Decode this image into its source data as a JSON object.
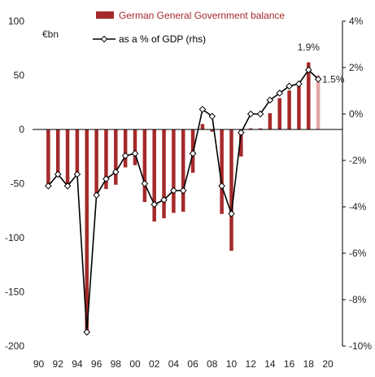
{
  "chart_data": {
    "type": "bar",
    "title": "",
    "y_left_unit": "€bn",
    "ylim_left": [
      -200,
      100
    ],
    "ylim_right": [
      -10,
      4
    ],
    "y_left_ticks": [
      100,
      50,
      0,
      -50,
      -100,
      -150,
      -200
    ],
    "y_left_tick_labels": [
      "100",
      "50",
      "0",
      "-50",
      "-100",
      "-150",
      "-200"
    ],
    "y_right_ticks": [
      4,
      2,
      0,
      -2,
      -4,
      -6,
      -8,
      -10
    ],
    "y_right_tick_labels": [
      "4%",
      "2%",
      "0%",
      "-2%",
      "-4%",
      "-6%",
      "-8%",
      "-10%"
    ],
    "x_tick_labels": [
      "90",
      "92",
      "94",
      "96",
      "98",
      "00",
      "02",
      "04",
      "06",
      "08",
      "10",
      "12",
      "14",
      "16",
      "18",
      "20"
    ],
    "legend_position": "top",
    "series": [
      {
        "name": "German General Government balance",
        "axis": "left",
        "kind": "bar",
        "color": "#a52a2a",
        "x": [
          1991,
          1992,
          1993,
          1994,
          1995,
          1996,
          1997,
          1998,
          1999,
          2000,
          2001,
          2002,
          2003,
          2004,
          2005,
          2006,
          2007,
          2008,
          2009,
          2010,
          2011,
          2012,
          2013,
          2014,
          2015,
          2016,
          2017,
          2018,
          2019
        ],
        "values": [
          -50,
          -42,
          -53,
          -41,
          -188,
          -62,
          -55,
          -51,
          -35,
          -33,
          -67,
          -85,
          -82,
          -77,
          -76,
          -40,
          5,
          -2,
          -78,
          -112,
          -25,
          1,
          1,
          15,
          29,
          36,
          40,
          62,
          50
        ]
      },
      {
        "name": "as a % of GDP (rhs)",
        "axis": "right",
        "kind": "line",
        "color": "#000000",
        "marker": "diamond",
        "x": [
          1991,
          1992,
          1993,
          1994,
          1995,
          1996,
          1997,
          1998,
          1999,
          2000,
          2001,
          2002,
          2003,
          2004,
          2005,
          2006,
          2007,
          2008,
          2009,
          2010,
          2011,
          2012,
          2013,
          2014,
          2015,
          2016,
          2017,
          2018,
          2019
        ],
        "values": [
          -3.1,
          -2.6,
          -3.1,
          -2.6,
          -9.4,
          -3.5,
          -2.8,
          -2.5,
          -1.8,
          -1.7,
          -3.0,
          -3.9,
          -3.7,
          -3.3,
          -3.3,
          -1.7,
          0.2,
          -0.1,
          -3.1,
          -4.3,
          -0.8,
          0.0,
          0.0,
          0.6,
          0.9,
          1.2,
          1.3,
          1.9,
          1.5
        ]
      }
    ],
    "annotations": [
      {
        "text": "1.9%",
        "x": 2018,
        "y": 1.9,
        "axis": "right"
      },
      {
        "text": "1.5%",
        "x": 2019,
        "y": 1.5,
        "axis": "right"
      }
    ],
    "colors": {
      "bar": "#a52a2a",
      "bar_forecast": "#e3a6a6",
      "line": "#000000",
      "marker_fill": "#ffffff"
    }
  }
}
